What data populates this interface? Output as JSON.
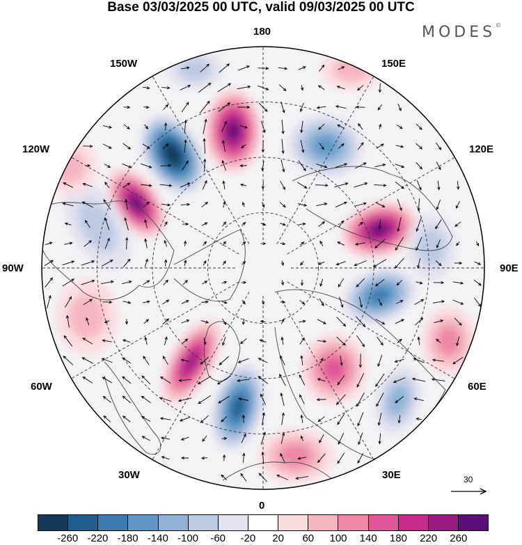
{
  "title": "Base 03/03/2025 00 UTC, valid 09/03/2025 00 UTC",
  "brand": "MODES",
  "brand_mark": "©",
  "longitude_labels": {
    "lon_180": "180",
    "lon_150e": "150E",
    "lon_120e": "120E",
    "lon_90e": "90E",
    "lon_60e": "60E",
    "lon_30e": "30E",
    "lon_0": "0",
    "lon_30w": "30W",
    "lon_60w": "60W",
    "lon_90w": "90W",
    "lon_120w": "120W",
    "lon_150w": "150W"
  },
  "reference_vector": "30",
  "colorbar": {
    "labels": [
      "-260",
      "-220",
      "-180",
      "-140",
      "-100",
      "-60",
      "-20",
      "20",
      "60",
      "100",
      "140",
      "180",
      "220",
      "260"
    ],
    "colors": [
      "#163b5a",
      "#1f5e8c",
      "#3a7bb2",
      "#5f97c6",
      "#8fb2d6",
      "#bccae3",
      "#e2e2f0",
      "#ffffff",
      "#fbdde0",
      "#f5b6c1",
      "#ee86a6",
      "#e05597",
      "#c42b8b",
      "#9c1a86",
      "#5c0f78"
    ]
  },
  "colors": {
    "coast": "#444444",
    "grid": "#333333",
    "vector": "#000000"
  }
}
